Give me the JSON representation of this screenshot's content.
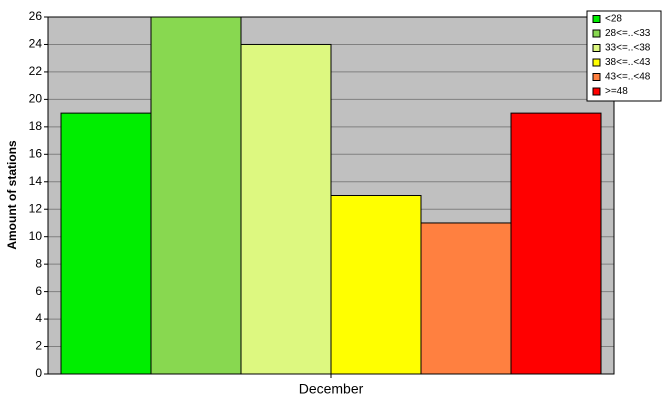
{
  "chart_data": {
    "type": "bar",
    "categories": [
      "December"
    ],
    "series": [
      {
        "name": "<28",
        "color": "#00ee00",
        "values": [
          19
        ]
      },
      {
        "name": "28<=..<33",
        "color": "#88d850",
        "values": [
          26
        ]
      },
      {
        "name": "33<=..<38",
        "color": "#ddf880",
        "values": [
          24
        ]
      },
      {
        "name": "38<=..<43",
        "color": "#ffff00",
        "values": [
          13
        ]
      },
      {
        "name": "43<=..<48",
        "color": "#ff8040",
        "values": [
          11
        ]
      },
      {
        "name": ">=48",
        "color": "#ff0000",
        "values": [
          19
        ]
      }
    ],
    "y_label": "Amount of stations",
    "ylim": [
      0,
      26
    ],
    "yticks": [
      0,
      2,
      4,
      6,
      8,
      10,
      12,
      14,
      16,
      18,
      20,
      22,
      24,
      26
    ],
    "grid": true,
    "legend": "top-right"
  }
}
